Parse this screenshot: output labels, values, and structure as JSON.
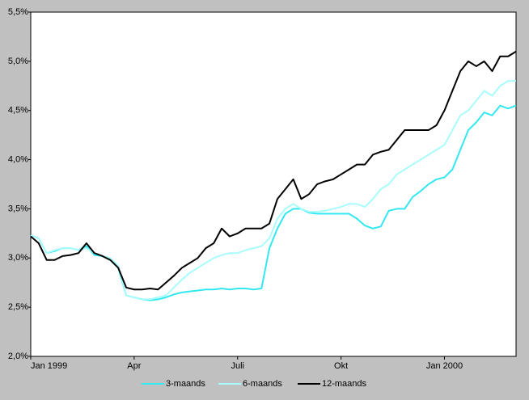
{
  "chart_data": {
    "type": "line",
    "categories": [
      "Jan 1999",
      null,
      null,
      null,
      null,
      null,
      null,
      null,
      null,
      null,
      null,
      null,
      null,
      "Apr",
      null,
      null,
      null,
      null,
      null,
      null,
      null,
      null,
      null,
      null,
      null,
      null,
      "Juli",
      null,
      null,
      null,
      null,
      null,
      null,
      null,
      null,
      null,
      null,
      null,
      null,
      "Okt",
      null,
      null,
      null,
      null,
      null,
      null,
      null,
      null,
      null,
      null,
      null,
      null,
      "Jan 2000",
      null,
      null,
      null,
      null,
      null,
      null,
      null,
      null,
      null
    ],
    "series": [
      {
        "name": "3-maands",
        "color": "#33e8f0",
        "values": [
          3.23,
          3.2,
          3.05,
          3.07,
          3.1,
          3.1,
          3.08,
          3.12,
          3.03,
          3.02,
          2.98,
          2.9,
          2.62,
          2.6,
          2.58,
          2.57,
          2.58,
          2.6,
          2.63,
          2.65,
          2.66,
          2.67,
          2.68,
          2.68,
          2.69,
          2.68,
          2.69,
          2.69,
          2.68,
          2.69,
          3.1,
          3.3,
          3.45,
          3.5,
          3.5,
          3.46,
          3.45,
          3.45,
          3.45,
          3.45,
          3.45,
          3.4,
          3.33,
          3.3,
          3.32,
          3.48,
          3.5,
          3.5,
          3.62,
          3.68,
          3.75,
          3.8,
          3.82,
          3.9,
          4.1,
          4.3,
          4.38,
          4.48,
          4.45,
          4.55,
          4.52,
          4.55
        ]
      },
      {
        "name": "6-maands",
        "color": "#a8fcfc",
        "values": [
          3.23,
          3.2,
          3.05,
          3.08,
          3.1,
          3.1,
          3.08,
          3.1,
          3.05,
          3.02,
          3.0,
          2.92,
          2.62,
          2.6,
          2.58,
          2.58,
          2.6,
          2.62,
          2.7,
          2.78,
          2.85,
          2.9,
          2.95,
          3.0,
          3.03,
          3.05,
          3.05,
          3.08,
          3.1,
          3.12,
          3.2,
          3.4,
          3.5,
          3.55,
          3.5,
          3.47,
          3.47,
          3.48,
          3.5,
          3.52,
          3.55,
          3.55,
          3.52,
          3.6,
          3.7,
          3.75,
          3.85,
          3.9,
          3.95,
          4.0,
          4.05,
          4.1,
          4.15,
          4.3,
          4.45,
          4.5,
          4.6,
          4.7,
          4.65,
          4.75,
          4.8,
          4.8
        ]
      },
      {
        "name": "12-maands",
        "color": "#000000",
        "values": [
          3.22,
          3.15,
          2.98,
          2.98,
          3.02,
          3.03,
          3.05,
          3.15,
          3.05,
          3.02,
          2.98,
          2.9,
          2.7,
          2.68,
          2.68,
          2.69,
          2.68,
          2.75,
          2.82,
          2.9,
          2.95,
          3.0,
          3.1,
          3.15,
          3.3,
          3.22,
          3.25,
          3.3,
          3.3,
          3.3,
          3.35,
          3.6,
          3.7,
          3.8,
          3.6,
          3.65,
          3.75,
          3.78,
          3.8,
          3.85,
          3.9,
          3.95,
          3.95,
          4.05,
          4.08,
          4.1,
          4.2,
          4.3,
          4.3,
          4.3,
          4.3,
          4.35,
          4.5,
          4.7,
          4.9,
          5.0,
          4.95,
          5.0,
          4.9,
          5.05,
          5.05,
          5.1
        ]
      }
    ],
    "ylim": [
      2.0,
      5.5
    ],
    "yticks": [
      {
        "value": 2.0,
        "label": "2,0%"
      },
      {
        "value": 2.5,
        "label": "2,5%"
      },
      {
        "value": 3.0,
        "label": "3,0%"
      },
      {
        "value": 3.5,
        "label": "3,5%"
      },
      {
        "value": 4.0,
        "label": "4,0%"
      },
      {
        "value": 4.5,
        "label": "4,5%"
      },
      {
        "value": 5.0,
        "label": "5,0%"
      },
      {
        "value": 5.5,
        "label": "5,5%"
      }
    ],
    "grid": false,
    "legend": "bottom"
  }
}
